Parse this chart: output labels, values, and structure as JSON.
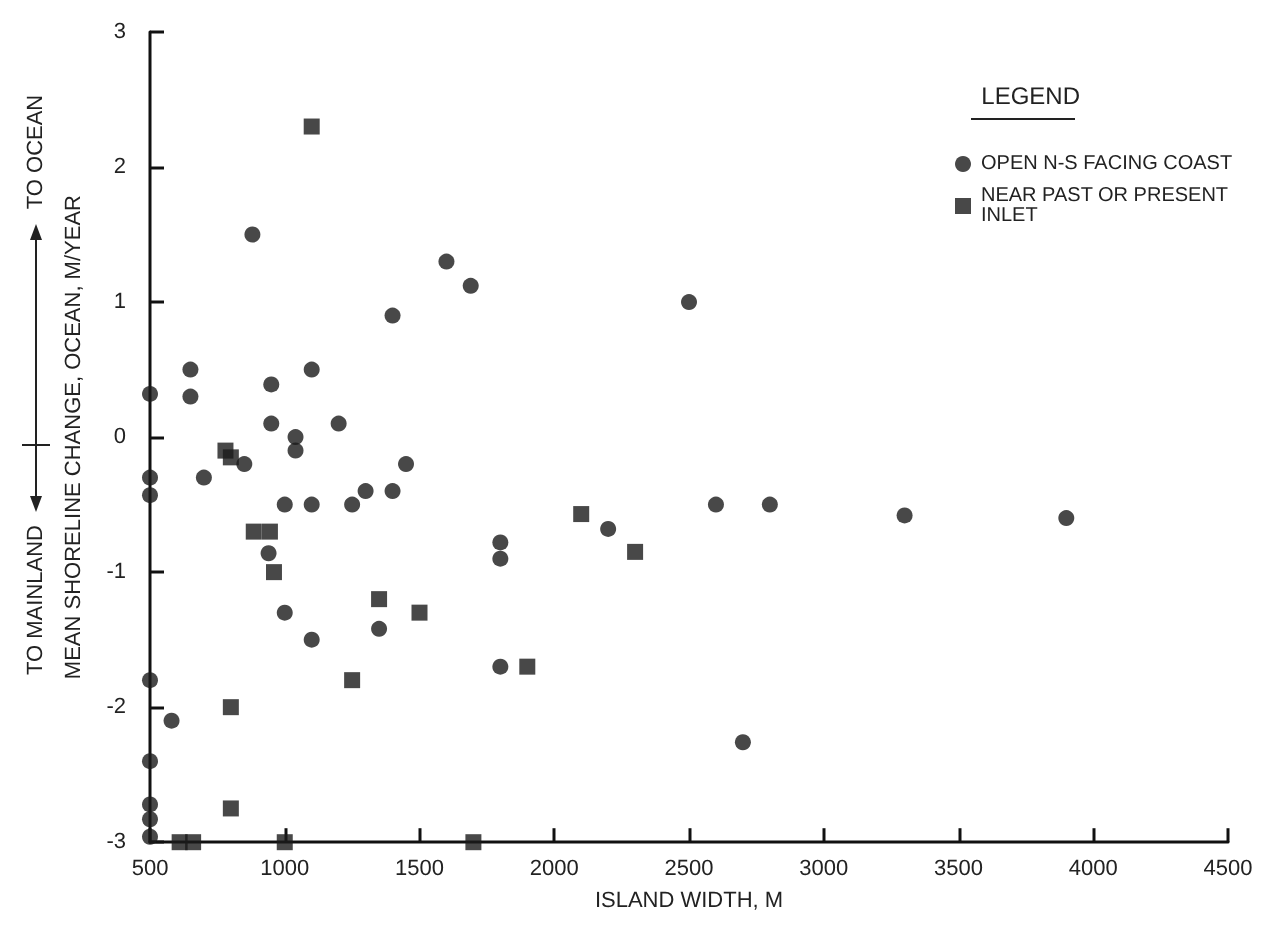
{
  "chart_data": {
    "type": "scatter",
    "xlabel": "ISLAND WIDTH, M",
    "ylabel": "MEAN SHORELINE CHANGE, OCEAN, M/YEAR",
    "legend_title": "LEGEND",
    "annotations": [
      "TO OCEAN",
      "TO MAINLAND"
    ],
    "series": [
      {
        "name": "OPEN N-S FACING COAST",
        "color": "#1a1a1a",
        "marker": "circle",
        "x": [
          880,
          1600,
          1690,
          1400,
          650,
          650,
          500,
          950,
          1100,
          950,
          1200,
          1040,
          1040,
          850,
          500,
          500,
          700,
          1000,
          1100,
          1250,
          1300,
          1400,
          1450,
          1800,
          1800,
          940,
          1000,
          1350,
          1100,
          1800,
          500,
          580,
          500,
          500,
          500,
          500,
          2200,
          2600,
          2800,
          3300,
          3900,
          2700,
          2500
        ],
        "values": [
          1.5,
          1.3,
          1.12,
          0.9,
          0.5,
          0.3,
          0.32,
          0.39,
          0.5,
          0.1,
          0.1,
          0.0,
          -0.1,
          -0.2,
          -0.3,
          -0.43,
          -0.3,
          -0.5,
          -0.5,
          -0.5,
          -0.4,
          -0.4,
          -0.2,
          -0.78,
          -0.9,
          -0.86,
          -1.3,
          -1.42,
          -1.5,
          -1.7,
          -1.8,
          -2.1,
          -2.4,
          -2.72,
          -2.83,
          -2.96,
          -0.68,
          -0.5,
          -0.5,
          -0.58,
          -0.6,
          -2.26,
          1.0
        ]
      },
      {
        "name": "NEAR PAST OR PRESENT INLET",
        "color": "#1a1a1a",
        "marker": "square",
        "x": [
          1100,
          780,
          800,
          885,
          945,
          960,
          1350,
          1500,
          1250,
          800,
          800,
          610,
          660,
          1000,
          1700,
          1900,
          2100,
          2300
        ],
        "values": [
          2.3,
          -0.1,
          -0.15,
          -0.7,
          -0.7,
          -1.0,
          -1.2,
          -1.3,
          -1.8,
          -2.0,
          -2.75,
          -3.0,
          -3.0,
          -3.0,
          -3.0,
          -1.7,
          -0.57,
          -0.85
        ]
      }
    ],
    "xlim": [
      500,
      4500
    ],
    "xticks": [
      500,
      1000,
      1500,
      2000,
      2500,
      3000,
      3500,
      4000,
      4500
    ],
    "ylim": [
      -3,
      3
    ],
    "yticks": [
      -3,
      -2,
      -1,
      0,
      1,
      2,
      3
    ],
    "grid": false,
    "legend": "top right"
  }
}
